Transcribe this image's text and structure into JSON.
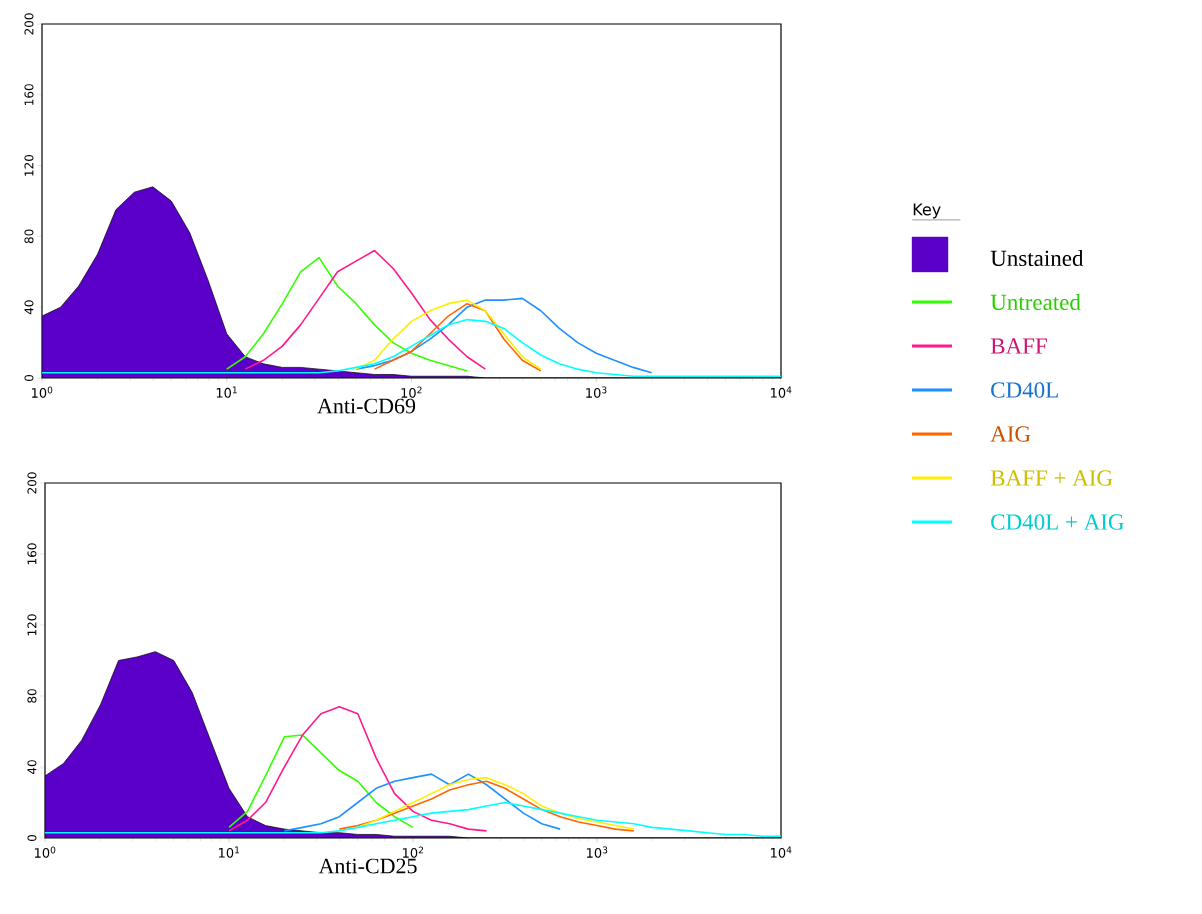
{
  "chart_data": [
    {
      "type": "line",
      "xlabel": "Anti-CD69",
      "log": "x",
      "legend": "right",
      "legend_title": "Key",
      "xlim": [
        1,
        10000
      ],
      "ylim": [
        0,
        200
      ],
      "xticks": [
        {
          "value": 1,
          "label": "10$^{0}$"
        },
        {
          "value": 10,
          "label": "10$^{1}$"
        },
        {
          "value": 100,
          "label": "10$^{2}$"
        },
        {
          "value": 1000,
          "label": "10$^{3}$"
        },
        {
          "value": 10000,
          "label": "10$^{4}$"
        }
      ],
      "yticks": [
        0,
        40,
        80,
        120,
        160,
        200
      ],
      "x": [
        1,
        1.26,
        1.58,
        2,
        2.51,
        3.16,
        3.98,
        5.01,
        6.31,
        7.94,
        10,
        12.6,
        15.8,
        20,
        25.1,
        31.6,
        39.8,
        50.1,
        63.1,
        79.4,
        100,
        126,
        158,
        200,
        251,
        316,
        398,
        501,
        631,
        794,
        1000,
        1259,
        1585,
        1995,
        2512,
        3162,
        3981,
        5012,
        6310,
        7943,
        10000
      ],
      "series": [
        {
          "name": "Unstained",
          "type": "area",
          "color": "#5a00c8",
          "values": [
            35,
            40,
            52,
            70,
            95,
            105,
            108,
            100,
            82,
            55,
            25,
            12,
            8,
            6,
            6,
            5,
            4,
            3,
            2,
            2,
            1,
            1,
            1,
            1,
            0,
            0,
            0,
            0,
            0,
            0,
            0,
            0,
            0,
            0,
            0,
            0,
            0,
            0,
            0,
            0,
            0
          ]
        },
        {
          "name": "Untreated",
          "color": "#33ff00",
          "values": [
            null,
            null,
            null,
            null,
            null,
            null,
            null,
            null,
            null,
            null,
            5,
            12,
            25,
            42,
            60,
            68,
            52,
            42,
            30,
            20,
            14,
            10,
            7,
            4,
            null,
            null,
            null,
            null,
            null,
            null,
            null,
            null,
            null,
            null,
            null,
            null,
            null,
            null,
            null,
            null,
            null
          ]
        },
        {
          "name": "BAFF",
          "color": "#ff1a8c",
          "values": [
            null,
            null,
            null,
            null,
            null,
            null,
            null,
            null,
            null,
            null,
            null,
            5,
            10,
            18,
            30,
            45,
            60,
            66,
            72,
            62,
            48,
            33,
            22,
            12,
            5,
            null,
            null,
            null,
            null,
            null,
            null,
            null,
            null,
            null,
            null,
            null,
            null,
            null,
            null,
            null,
            null
          ]
        },
        {
          "name": "CD40L",
          "color": "#1e90ff",
          "values": [
            null,
            null,
            null,
            null,
            null,
            null,
            null,
            null,
            null,
            null,
            null,
            null,
            null,
            null,
            null,
            null,
            null,
            5,
            7,
            10,
            15,
            22,
            30,
            40,
            44,
            44,
            45,
            38,
            28,
            20,
            14,
            10,
            6,
            3,
            null,
            null,
            null,
            null,
            null,
            null,
            null
          ]
        },
        {
          "name": "AIG",
          "color": "#ff6600",
          "values": [
            null,
            null,
            null,
            null,
            null,
            null,
            null,
            null,
            null,
            null,
            null,
            null,
            null,
            null,
            null,
            null,
            null,
            null,
            5,
            10,
            15,
            25,
            35,
            42,
            38,
            22,
            10,
            4,
            null,
            null,
            null,
            null,
            null,
            null,
            null,
            null,
            null,
            null,
            null,
            null,
            null
          ]
        },
        {
          "name": "BAFF + AIG",
          "color": "#ffee00",
          "values": [
            null,
            null,
            null,
            null,
            null,
            null,
            null,
            null,
            null,
            null,
            null,
            null,
            null,
            null,
            null,
            null,
            null,
            5,
            10,
            22,
            32,
            38,
            42,
            44,
            38,
            25,
            12,
            5,
            null,
            null,
            null,
            null,
            null,
            null,
            null,
            null,
            null,
            null,
            null,
            null,
            null
          ]
        },
        {
          "name": "CD40L + AIG",
          "color": "#00ffff",
          "values": [
            3,
            3,
            3,
            3,
            3,
            3,
            3,
            3,
            3,
            3,
            3,
            3,
            3,
            3,
            3,
            3,
            4,
            6,
            8,
            12,
            18,
            24,
            30,
            33,
            32,
            28,
            20,
            13,
            8,
            5,
            3,
            2,
            1,
            1,
            1,
            1,
            1,
            1,
            1,
            1,
            1
          ]
        }
      ]
    },
    {
      "type": "line",
      "xlabel": "Anti-CD25",
      "log": "x",
      "xlim": [
        1,
        10000
      ],
      "ylim": [
        0,
        200
      ],
      "xticks": [
        {
          "value": 1,
          "label": "10$^{0}$"
        },
        {
          "value": 10,
          "label": "10$^{1}$"
        },
        {
          "value": 100,
          "label": "10$^{2}$"
        },
        {
          "value": 1000,
          "label": "10$^{3}$"
        },
        {
          "value": 10000,
          "label": "10$^{4}$"
        }
      ],
      "yticks": [
        0,
        40,
        80,
        120,
        160,
        200
      ],
      "x": [
        1,
        1.26,
        1.58,
        2,
        2.51,
        3.16,
        3.98,
        5.01,
        6.31,
        7.94,
        10,
        12.6,
        15.8,
        20,
        25.1,
        31.6,
        39.8,
        50.1,
        63.1,
        79.4,
        100,
        126,
        158,
        200,
        251,
        316,
        398,
        501,
        631,
        794,
        1000,
        1259,
        1585,
        1995,
        2512,
        3162,
        3981,
        5012,
        6310,
        7943,
        10000
      ],
      "series": [
        {
          "type": "area",
          "color": "#5a00c8",
          "values": [
            35,
            42,
            55,
            75,
            100,
            102,
            105,
            100,
            82,
            55,
            28,
            12,
            7,
            5,
            4,
            3,
            3,
            2,
            2,
            1,
            1,
            1,
            1,
            0,
            0,
            0,
            0,
            0,
            0,
            0,
            0,
            0,
            0,
            0,
            0,
            0,
            0,
            0,
            0,
            0,
            0
          ]
        },
        {
          "color": "#33ff00",
          "values": [
            null,
            null,
            null,
            null,
            null,
            null,
            null,
            null,
            null,
            null,
            6,
            15,
            35,
            57,
            58,
            48,
            38,
            32,
            20,
            12,
            6,
            null,
            null,
            null,
            null,
            null,
            null,
            null,
            null,
            null,
            null,
            null,
            null,
            null,
            null,
            null,
            null,
            null,
            null,
            null,
            null
          ]
        },
        {
          "color": "#ff1a8c",
          "values": [
            null,
            null,
            null,
            null,
            null,
            null,
            null,
            null,
            null,
            null,
            4,
            10,
            20,
            40,
            58,
            70,
            74,
            70,
            45,
            25,
            15,
            10,
            8,
            5,
            4,
            null,
            null,
            null,
            null,
            null,
            null,
            null,
            null,
            null,
            null,
            null,
            null,
            null,
            null,
            null,
            null
          ]
        },
        {
          "color": "#1e90ff",
          "values": [
            null,
            null,
            null,
            null,
            null,
            null,
            null,
            null,
            null,
            null,
            null,
            null,
            null,
            4,
            6,
            8,
            12,
            20,
            28,
            32,
            34,
            36,
            30,
            36,
            30,
            22,
            14,
            8,
            5,
            null,
            null,
            null,
            null,
            null,
            null,
            null,
            null,
            null,
            null,
            null,
            null
          ]
        },
        {
          "color": "#ff6600",
          "values": [
            null,
            null,
            null,
            null,
            null,
            null,
            null,
            null,
            null,
            null,
            null,
            null,
            null,
            null,
            null,
            null,
            5,
            7,
            10,
            14,
            18,
            22,
            27,
            30,
            32,
            28,
            22,
            16,
            12,
            9,
            7,
            5,
            4,
            null,
            null,
            null,
            null,
            null,
            null,
            null,
            null
          ]
        },
        {
          "color": "#ffee00",
          "values": [
            null,
            null,
            null,
            null,
            null,
            null,
            null,
            null,
            null,
            null,
            null,
            null,
            null,
            null,
            null,
            null,
            null,
            6,
            10,
            15,
            20,
            25,
            30,
            33,
            34,
            30,
            25,
            18,
            14,
            11,
            9,
            7,
            5,
            null,
            null,
            null,
            null,
            null,
            null,
            null,
            null
          ]
        },
        {
          "color": "#00ffff",
          "values": [
            3,
            3,
            3,
            3,
            3,
            3,
            3,
            3,
            3,
            3,
            3,
            3,
            3,
            3,
            3,
            3,
            4,
            6,
            8,
            10,
            12,
            14,
            15,
            16,
            18,
            20,
            18,
            16,
            14,
            12,
            10,
            9,
            8,
            6,
            5,
            4,
            3,
            2,
            2,
            1,
            1
          ]
        }
      ]
    }
  ]
}
